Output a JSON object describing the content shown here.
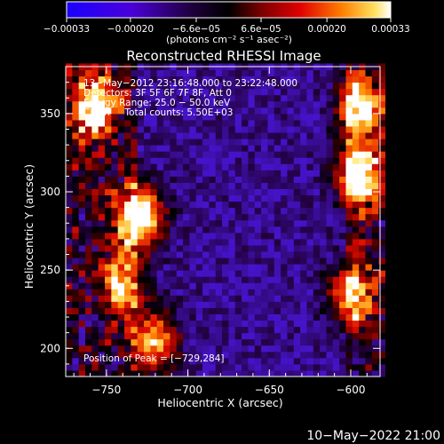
{
  "chart_data": {
    "type": "heatmap",
    "title": "Reconstructed RHESSI Image",
    "xlabel": "Heliocentric X (arcsec)",
    "ylabel": "Heliocentric Y (arcsec)",
    "xlim": [
      -775,
      -582
    ],
    "ylim": [
      182,
      380
    ],
    "x_ticks": [
      -750,
      -700,
      -650,
      -600
    ],
    "x_tick_labels": [
      "−750",
      "−700",
      "−650",
      "−600"
    ],
    "y_ticks": [
      200,
      250,
      300,
      350
    ],
    "y_tick_labels": [
      "200",
      "250",
      "300",
      "350"
    ],
    "colorbar": {
      "range": [
        -0.00033,
        0.00033
      ],
      "ticks": [
        -0.00033,
        -0.0002,
        -6.6e-05,
        6.6e-05,
        0.0002,
        0.00033
      ],
      "tick_labels": [
        "−0.00033",
        "−0.00020",
        "−6.6e−05",
        "6.6e−05",
        "0.00020",
        "0.00033"
      ],
      "unit_label": "(photons cm⁻² s⁻¹ asec⁻²)"
    },
    "annotations": [
      "13−May−2012 23:16:48.000 to 23:22:48.000",
      "Detectors: 3F 5F 6F 7F 8F, Att 0",
      "Energy Range: 25.0 − 50.0 keV",
      "Clean     Total counts: 5.50E+03"
    ],
    "peak_label": "Position of Peak = [−729,284]",
    "peak": {
      "x": -729,
      "y": 284
    },
    "bright_regions": [
      {
        "x": -729,
        "y": 284,
        "level": 1.0
      },
      {
        "x": -595,
        "y": 310,
        "level": 0.9
      },
      {
        "x": -757,
        "y": 355,
        "level": 0.85
      },
      {
        "x": -595,
        "y": 355,
        "level": 0.8
      },
      {
        "x": -720,
        "y": 205,
        "level": 0.75
      },
      {
        "x": -600,
        "y": 235,
        "level": 0.7
      },
      {
        "x": -740,
        "y": 240,
        "level": 0.6
      }
    ]
  },
  "footer": {
    "timestamp": "10−May−2022 21:00"
  }
}
